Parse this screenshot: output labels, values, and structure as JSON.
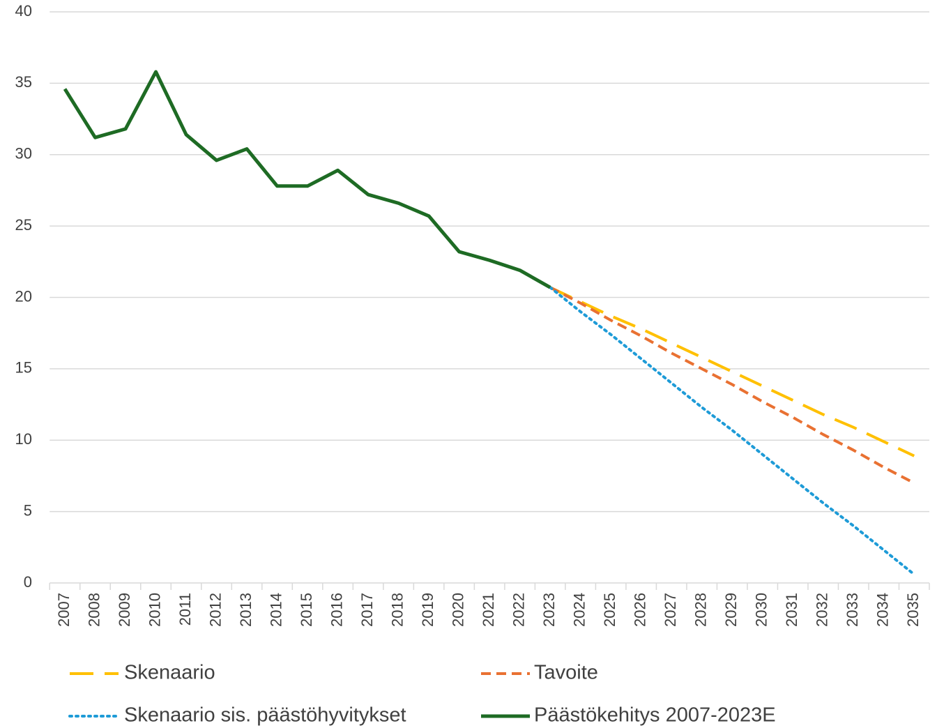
{
  "chart_data": {
    "type": "line",
    "categories": [
      "2007",
      "2008",
      "2009",
      "2010",
      "2011",
      "2012",
      "2013",
      "2014",
      "2015",
      "2016",
      "2017",
      "2018",
      "2019",
      "2020",
      "2021",
      "2022",
      "2023",
      "2024",
      "2025",
      "2026",
      "2027",
      "2028",
      "2029",
      "2030",
      "2031",
      "2032",
      "2033",
      "2034",
      "2035"
    ],
    "series": [
      {
        "name": "Skenaario",
        "color": "#ffc000",
        "dash": "long",
        "values": [
          null,
          null,
          null,
          null,
          null,
          null,
          null,
          null,
          null,
          null,
          null,
          null,
          null,
          null,
          null,
          null,
          20.7,
          19.7,
          18.7,
          17.8,
          16.8,
          15.8,
          14.8,
          13.8,
          12.8,
          11.8,
          10.9,
          9.9,
          8.9
        ]
      },
      {
        "name": "Tavoite",
        "color": "#e97132",
        "dash": "short",
        "values": [
          null,
          null,
          null,
          null,
          null,
          null,
          null,
          null,
          null,
          null,
          null,
          null,
          null,
          null,
          null,
          null,
          20.7,
          19.6,
          18.4,
          17.3,
          16.1,
          15.0,
          13.9,
          12.7,
          11.6,
          10.4,
          9.3,
          8.1,
          7.0
        ]
      },
      {
        "name": "Skenaario sis. päästöhyvitykset",
        "color": "#1e9bd7",
        "dash": "dot",
        "values": [
          null,
          null,
          null,
          null,
          null,
          null,
          null,
          null,
          null,
          null,
          null,
          null,
          null,
          null,
          null,
          null,
          20.7,
          19.0,
          17.4,
          15.7,
          14.0,
          12.3,
          10.7,
          9.0,
          7.3,
          5.6,
          4.0,
          2.3,
          0.6
        ]
      },
      {
        "name": "Päästökehitys 2007-2023E",
        "color": "#1e6b24",
        "dash": "solid",
        "values": [
          34.6,
          31.2,
          31.8,
          35.8,
          31.4,
          29.6,
          30.4,
          27.8,
          27.8,
          28.9,
          27.2,
          26.6,
          25.7,
          23.2,
          22.6,
          21.9,
          20.7,
          null,
          null,
          null,
          null,
          null,
          null,
          null,
          null,
          null,
          null,
          null,
          null
        ]
      }
    ],
    "ylim": [
      0,
      40
    ],
    "yticks": [
      0,
      5,
      10,
      15,
      20,
      25,
      30,
      35,
      40
    ],
    "grid": true
  }
}
